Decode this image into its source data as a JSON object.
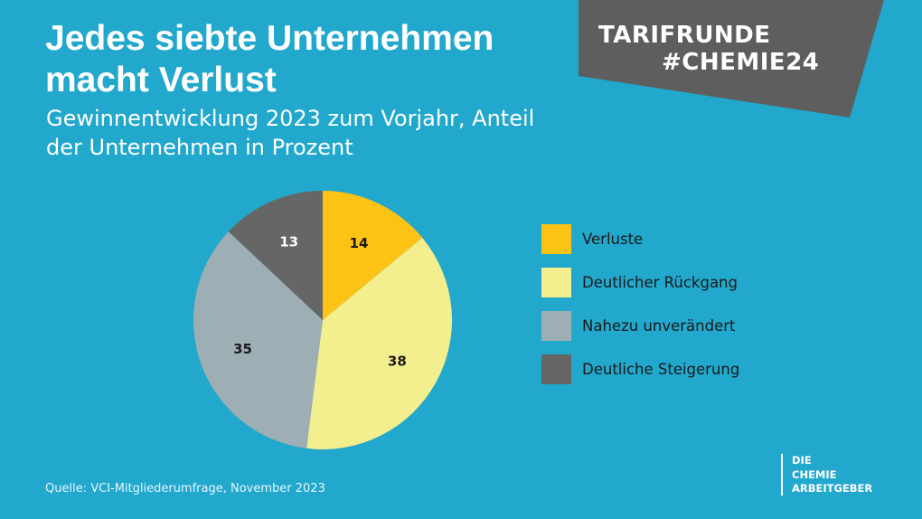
{
  "header": {
    "title": "Jedes siebte Unternehmen macht Verlust",
    "subtitle": "Gewinnentwicklung 2023 zum Vorjahr, Anteil der Unternehmen in Prozent"
  },
  "banner": {
    "line1": "TARIFRUNDE",
    "line2": "#CHEMIE24",
    "color": "#5E5E5E"
  },
  "chart_data": {
    "type": "pie",
    "title": "Jedes siebte Unternehmen macht Verlust",
    "subtitle": "Gewinnentwicklung 2023 zum Vorjahr, Anteil der Unternehmen in Prozent",
    "categories": [
      "Verluste",
      "Deutlicher Rückgang",
      "Nahezu unverändert",
      "Deutliche Steigerung"
    ],
    "values": [
      14,
      38,
      35,
      13
    ],
    "colors": [
      "#FDC314",
      "#F3EE8E",
      "#9DAFB4",
      "#666666"
    ],
    "legend_position": "right"
  },
  "footer": {
    "source": "Quelle: VCI-Mitgliederumfrage, November 2023"
  },
  "logo": {
    "line1": "DIE",
    "line2": "CHEMIE",
    "line3": "ARBEITGEBER"
  }
}
